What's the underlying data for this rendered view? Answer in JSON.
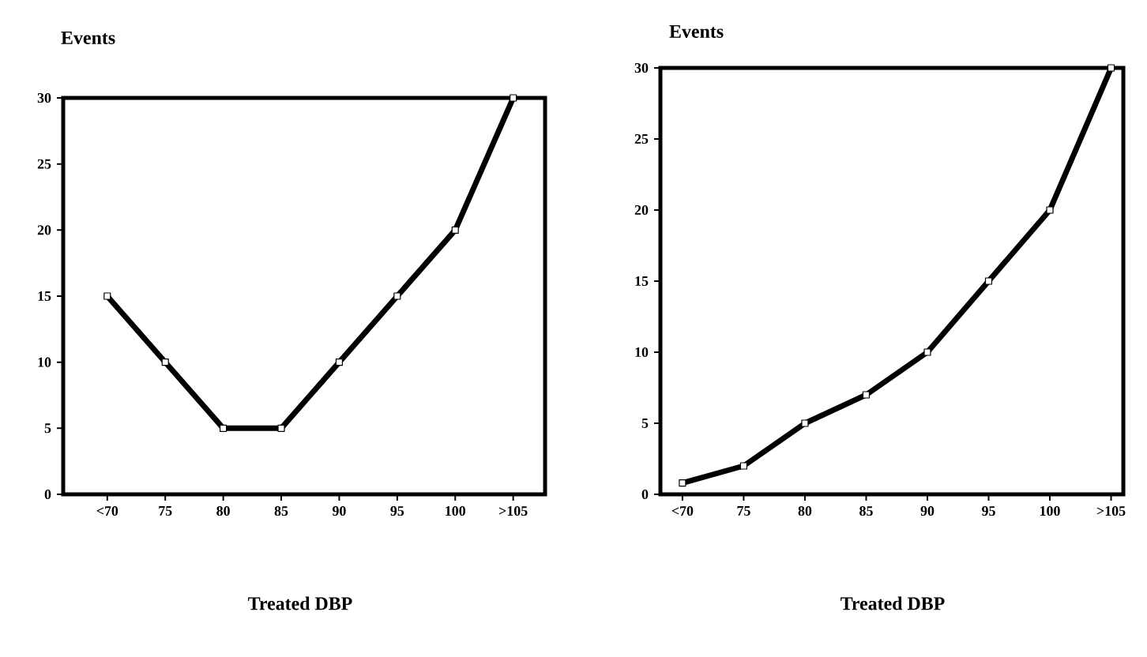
{
  "chart_data": [
    {
      "type": "line",
      "ylabel": "Events",
      "xlabel": "Treated DBP",
      "categories": [
        "<70",
        "75",
        "80",
        "85",
        "90",
        "95",
        "100",
        ">105"
      ],
      "values": [
        15,
        10,
        5,
        5,
        10,
        15,
        20,
        30
      ],
      "color": "#000000",
      "ylim": [
        0,
        30
      ],
      "yticks": [
        0,
        5,
        10,
        15,
        20,
        25,
        30
      ],
      "marker": "square"
    },
    {
      "type": "line",
      "ylabel": "Events",
      "xlabel": "Treated DBP",
      "categories": [
        "<70",
        "75",
        "80",
        "85",
        "90",
        "95",
        "100",
        ">105"
      ],
      "values": [
        0.8,
        2,
        5,
        7,
        10,
        15,
        20,
        30
      ],
      "color": "#000000",
      "ylim": [
        0,
        30
      ],
      "yticks": [
        0,
        5,
        10,
        15,
        20,
        25,
        30
      ],
      "marker": "square"
    }
  ]
}
